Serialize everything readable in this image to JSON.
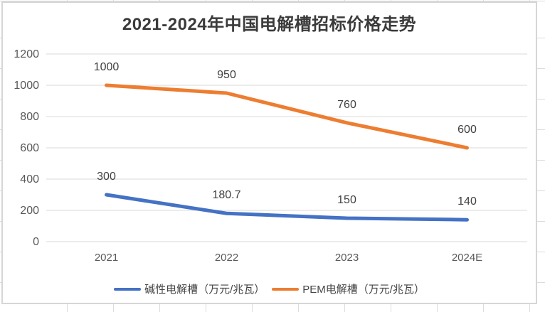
{
  "chart_data": {
    "type": "line",
    "title": "2021-2024年中国电解槽招标价格走势",
    "categories": [
      "2021",
      "2022",
      "2023",
      "2024E"
    ],
    "series": [
      {
        "name": "碱性电解槽（万元/兆瓦）",
        "color": "#4472C4",
        "values": [
          300,
          180.7,
          150,
          140
        ],
        "labels": [
          "300",
          "180.7",
          "150",
          "140"
        ]
      },
      {
        "name": "PEM电解槽（万元/兆瓦）",
        "color": "#ED7D31",
        "values": [
          1000,
          950,
          760,
          600
        ],
        "labels": [
          "1000",
          "950",
          "760",
          "600"
        ]
      }
    ],
    "y_axis": {
      "min": 0,
      "max": 1200,
      "step": 200,
      "ticks": [
        "0",
        "200",
        "400",
        "600",
        "800",
        "1000",
        "1200"
      ]
    },
    "x_axis": {
      "labels": [
        "2021",
        "2022",
        "2023",
        "2024E"
      ]
    },
    "grid": true,
    "legend_position": "bottom"
  },
  "colors": {
    "gridline": "#d9d9d9",
    "axis_text": "#595959",
    "data_label_text": "#404040",
    "title_text": "#3b3b3b",
    "chart_border": "#d6d6d6",
    "series_blue": "#4472C4",
    "series_orange": "#ED7D31"
  }
}
